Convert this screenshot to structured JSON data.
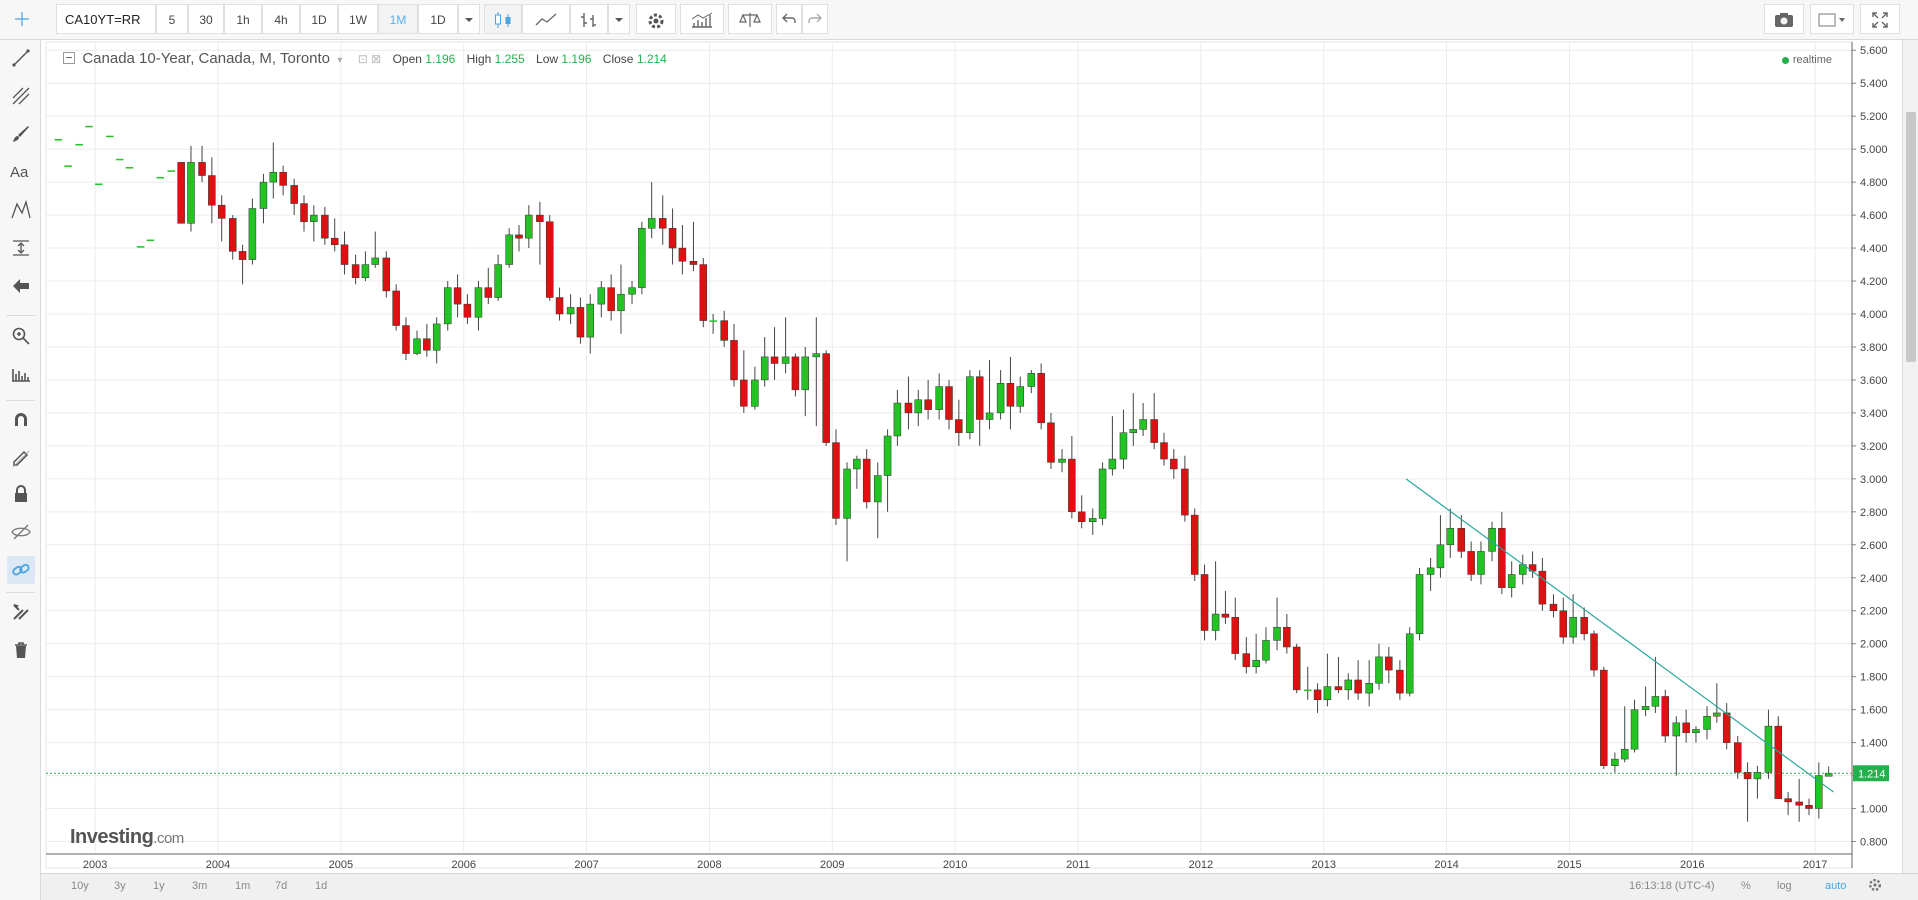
{
  "toolbar": {
    "symbol": "CA10YT=RR",
    "intervals": [
      "5",
      "30",
      "1h",
      "4h",
      "1D",
      "1W",
      "1M",
      "1D"
    ],
    "active_interval": "1M"
  },
  "legend": {
    "title": "Canada 10-Year, Canada, M, Toronto",
    "open_label": "Open",
    "open": "1.196",
    "high_label": "High",
    "high": "1.255",
    "low_label": "Low",
    "low": "1.196",
    "close_label": "Close",
    "close": "1.214"
  },
  "realtime": "realtime",
  "watermark": {
    "main": "Investing",
    "suffix": ".com"
  },
  "bottom": {
    "ranges": [
      "10y",
      "3y",
      "1y",
      "3m",
      "1m",
      "7d",
      "1d"
    ],
    "time": "16:13:18 (UTC-4)",
    "percent": "%",
    "log": "log",
    "auto": "auto"
  },
  "colors": {
    "up": "#22c322",
    "down": "#dd1111",
    "trendline": "#26a69a",
    "price_line": "#22b14c",
    "accent": "#4aa3df"
  },
  "icons": [
    "crosshair-icon",
    "trend-line-icon",
    "pitchfork-icon",
    "brush-icon",
    "text-icon",
    "pattern-icon",
    "measure-icon",
    "arrow-left-icon",
    "zoom-icon",
    "ruler-icon",
    "magnet-icon",
    "pencil-lock-icon",
    "lock-icon",
    "eye-icon",
    "link-icon",
    "wrench-icon",
    "trash-icon",
    "camera-icon",
    "fullscreen-icon",
    "gear-icon"
  ],
  "chart_data": {
    "type": "candlestick",
    "title": "Canada 10-Year, Canada, M, Toronto",
    "xlabel": "",
    "ylabel": "",
    "x_ticks": [
      "2003",
      "2004",
      "2005",
      "2006",
      "2007",
      "2008",
      "2009",
      "2010",
      "2011",
      "2012",
      "2013",
      "2014",
      "2015",
      "2016",
      "2017"
    ],
    "y_ticks": [
      "0.800",
      "1.000",
      "1.200",
      "1.400",
      "1.600",
      "1.800",
      "2.000",
      "2.200",
      "2.400",
      "2.600",
      "2.800",
      "3.000",
      "3.200",
      "3.400",
      "3.600",
      "3.800",
      "4.000",
      "4.200",
      "4.400",
      "4.600",
      "4.800",
      "5.000",
      "5.200",
      "5.400",
      "5.600"
    ],
    "ylim": [
      0.7,
      5.65
    ],
    "xlim": [
      2002.6,
      2017.3
    ],
    "last_price": "1.214",
    "trendline": {
      "from": [
        2013.67,
        3.0
      ],
      "to": [
        2017.15,
        1.1
      ]
    },
    "candles": [
      [
        2002.7,
        5.06,
        5.06,
        5.06,
        5.06
      ],
      [
        2002.78,
        4.9,
        4.9,
        4.9,
        4.9
      ],
      [
        2002.87,
        5.03,
        5.03,
        5.03,
        5.03
      ],
      [
        2002.95,
        5.14,
        5.14,
        5.14,
        5.14
      ],
      [
        2003.03,
        4.79,
        4.79,
        4.79,
        4.79
      ],
      [
        2003.12,
        5.08,
        5.08,
        5.08,
        5.08
      ],
      [
        2003.2,
        4.94,
        4.94,
        4.94,
        4.94
      ],
      [
        2003.28,
        4.89,
        4.89,
        4.89,
        4.89
      ],
      [
        2003.37,
        4.41,
        4.41,
        4.41,
        4.41
      ],
      [
        2003.45,
        4.45,
        4.45,
        4.45,
        4.45
      ],
      [
        2003.53,
        4.83,
        4.83,
        4.83,
        4.83
      ],
      [
        2003.62,
        4.87,
        4.87,
        4.87,
        4.87
      ],
      [
        2003.7,
        4.92,
        4.92,
        4.55,
        4.55
      ],
      [
        2003.78,
        4.55,
        5.02,
        4.5,
        4.92
      ],
      [
        2003.87,
        4.92,
        5.02,
        4.8,
        4.84
      ],
      [
        2003.95,
        4.84,
        4.95,
        4.55,
        4.66
      ],
      [
        2004.03,
        4.66,
        4.72,
        4.44,
        4.58
      ],
      [
        2004.12,
        4.58,
        4.6,
        4.33,
        4.38
      ],
      [
        2004.2,
        4.38,
        4.42,
        4.18,
        4.33
      ],
      [
        2004.28,
        4.33,
        4.7,
        4.3,
        4.64
      ],
      [
        2004.37,
        4.64,
        4.85,
        4.55,
        4.8
      ],
      [
        2004.45,
        4.8,
        5.04,
        4.7,
        4.86
      ],
      [
        2004.53,
        4.86,
        4.9,
        4.72,
        4.78
      ],
      [
        2004.62,
        4.78,
        4.82,
        4.6,
        4.67
      ],
      [
        2004.7,
        4.67,
        4.72,
        4.5,
        4.56
      ],
      [
        2004.78,
        4.56,
        4.66,
        4.44,
        4.6
      ],
      [
        2004.87,
        4.6,
        4.65,
        4.42,
        4.46
      ],
      [
        2004.95,
        4.46,
        4.58,
        4.38,
        4.42
      ],
      [
        2005.03,
        4.42,
        4.5,
        4.24,
        4.3
      ],
      [
        2005.12,
        4.3,
        4.36,
        4.18,
        4.22
      ],
      [
        2005.2,
        4.22,
        4.38,
        4.2,
        4.3
      ],
      [
        2005.28,
        4.3,
        4.5,
        4.28,
        4.34
      ],
      [
        2005.37,
        4.34,
        4.38,
        4.1,
        4.14
      ],
      [
        2005.45,
        4.14,
        4.18,
        3.9,
        3.93
      ],
      [
        2005.53,
        3.93,
        3.98,
        3.72,
        3.76
      ],
      [
        2005.62,
        3.76,
        3.9,
        3.75,
        3.85
      ],
      [
        2005.7,
        3.85,
        3.94,
        3.74,
        3.78
      ],
      [
        2005.78,
        3.78,
        3.98,
        3.7,
        3.94
      ],
      [
        2005.87,
        3.94,
        4.2,
        3.9,
        4.16
      ],
      [
        2005.95,
        4.16,
        4.24,
        3.98,
        4.06
      ],
      [
        2006.03,
        4.06,
        4.12,
        3.94,
        3.98
      ],
      [
        2006.12,
        3.98,
        4.2,
        3.9,
        4.16
      ],
      [
        2006.2,
        4.16,
        4.28,
        4.06,
        4.1
      ],
      [
        2006.28,
        4.1,
        4.36,
        4.08,
        4.3
      ],
      [
        2006.37,
        4.3,
        4.52,
        4.28,
        4.48
      ],
      [
        2006.45,
        4.48,
        4.54,
        4.38,
        4.46
      ],
      [
        2006.53,
        4.46,
        4.66,
        4.4,
        4.6
      ],
      [
        2006.62,
        4.6,
        4.68,
        4.3,
        4.56
      ],
      [
        2006.7,
        4.56,
        4.6,
        4.08,
        4.1
      ],
      [
        2006.78,
        4.1,
        4.16,
        3.96,
        4.0
      ],
      [
        2006.87,
        4.0,
        4.12,
        3.94,
        4.04
      ],
      [
        2006.95,
        4.04,
        4.1,
        3.82,
        3.86
      ],
      [
        2007.03,
        3.86,
        4.12,
        3.76,
        4.06
      ],
      [
        2007.12,
        4.06,
        4.2,
        3.98,
        4.16
      ],
      [
        2007.2,
        4.16,
        4.24,
        3.96,
        4.02
      ],
      [
        2007.28,
        4.02,
        4.3,
        3.88,
        4.12
      ],
      [
        2007.37,
        4.12,
        4.2,
        4.06,
        4.16
      ],
      [
        2007.45,
        4.16,
        4.56,
        4.12,
        4.52
      ],
      [
        2007.53,
        4.52,
        4.8,
        4.46,
        4.58
      ],
      [
        2007.62,
        4.58,
        4.72,
        4.42,
        4.52
      ],
      [
        2007.7,
        4.52,
        4.64,
        4.3,
        4.4
      ],
      [
        2007.78,
        4.4,
        4.54,
        4.24,
        4.32
      ],
      [
        2007.87,
        4.32,
        4.56,
        4.26,
        4.3
      ],
      [
        2007.95,
        4.3,
        4.34,
        3.92,
        3.96
      ],
      [
        2008.03,
        3.96,
        4.0,
        3.88,
        3.96
      ],
      [
        2008.12,
        3.96,
        4.02,
        3.8,
        3.84
      ],
      [
        2008.2,
        3.84,
        3.94,
        3.56,
        3.6
      ],
      [
        2008.28,
        3.6,
        3.78,
        3.4,
        3.44
      ],
      [
        2008.37,
        3.44,
        3.68,
        3.42,
        3.6
      ],
      [
        2008.45,
        3.6,
        3.86,
        3.56,
        3.74
      ],
      [
        2008.53,
        3.74,
        3.92,
        3.6,
        3.7
      ],
      [
        2008.62,
        3.7,
        3.98,
        3.64,
        3.74
      ],
      [
        2008.7,
        3.74,
        3.76,
        3.5,
        3.54
      ],
      [
        2008.78,
        3.54,
        3.8,
        3.38,
        3.74
      ],
      [
        2008.87,
        3.74,
        3.98,
        3.32,
        3.76
      ],
      [
        2008.95,
        3.76,
        3.78,
        3.2,
        3.22
      ],
      [
        2009.03,
        3.22,
        3.3,
        2.72,
        2.76
      ],
      [
        2009.12,
        2.76,
        3.1,
        2.5,
        3.06
      ],
      [
        2009.2,
        3.06,
        3.14,
        2.94,
        3.12
      ],
      [
        2009.28,
        3.12,
        3.18,
        2.82,
        2.86
      ],
      [
        2009.37,
        2.86,
        3.1,
        2.64,
        3.02
      ],
      [
        2009.45,
        3.02,
        3.3,
        2.8,
        3.26
      ],
      [
        2009.53,
        3.26,
        3.54,
        3.2,
        3.46
      ],
      [
        2009.62,
        3.46,
        3.62,
        3.3,
        3.4
      ],
      [
        2009.7,
        3.4,
        3.54,
        3.32,
        3.48
      ],
      [
        2009.78,
        3.48,
        3.6,
        3.36,
        3.42
      ],
      [
        2009.87,
        3.42,
        3.64,
        3.36,
        3.56
      ],
      [
        2009.95,
        3.56,
        3.6,
        3.3,
        3.36
      ],
      [
        2010.03,
        3.36,
        3.48,
        3.2,
        3.28
      ],
      [
        2010.12,
        3.28,
        3.66,
        3.24,
        3.62
      ],
      [
        2010.2,
        3.62,
        3.66,
        3.2,
        3.36
      ],
      [
        2010.28,
        3.36,
        3.72,
        3.3,
        3.4
      ],
      [
        2010.37,
        3.4,
        3.66,
        3.36,
        3.58
      ],
      [
        2010.45,
        3.58,
        3.74,
        3.3,
        3.44
      ],
      [
        2010.53,
        3.44,
        3.62,
        3.4,
        3.56
      ],
      [
        2010.62,
        3.56,
        3.66,
        3.52,
        3.64
      ],
      [
        2010.7,
        3.64,
        3.7,
        3.3,
        3.34
      ],
      [
        2010.78,
        3.34,
        3.4,
        3.06,
        3.1
      ],
      [
        2010.87,
        3.1,
        3.18,
        3.04,
        3.12
      ],
      [
        2010.95,
        3.12,
        3.26,
        2.76,
        2.8
      ],
      [
        2011.03,
        2.8,
        2.9,
        2.7,
        2.74
      ],
      [
        2011.12,
        2.74,
        2.82,
        2.66,
        2.76
      ],
      [
        2011.2,
        2.76,
        3.1,
        2.72,
        3.06
      ],
      [
        2011.28,
        3.06,
        3.38,
        3.02,
        3.12
      ],
      [
        2011.37,
        3.12,
        3.42,
        3.06,
        3.28
      ],
      [
        2011.45,
        3.28,
        3.52,
        3.2,
        3.3
      ],
      [
        2011.53,
        3.3,
        3.46,
        3.26,
        3.36
      ],
      [
        2011.62,
        3.36,
        3.52,
        3.18,
        3.22
      ],
      [
        2011.7,
        3.22,
        3.28,
        3.08,
        3.12
      ],
      [
        2011.78,
        3.12,
        3.18,
        3.0,
        3.06
      ],
      [
        2011.87,
        3.06,
        3.14,
        2.74,
        2.78
      ],
      [
        2011.95,
        2.78,
        2.82,
        2.38,
        2.42
      ],
      [
        2012.03,
        2.42,
        2.48,
        2.02,
        2.08
      ],
      [
        2012.12,
        2.08,
        2.5,
        2.02,
        2.18
      ],
      [
        2012.2,
        2.18,
        2.32,
        2.12,
        2.16
      ],
      [
        2012.28,
        2.16,
        2.28,
        1.9,
        1.94
      ],
      [
        2012.37,
        1.94,
        2.04,
        1.82,
        1.86
      ],
      [
        2012.45,
        1.86,
        2.06,
        1.82,
        1.9
      ],
      [
        2012.53,
        1.9,
        2.1,
        1.88,
        2.02
      ],
      [
        2012.62,
        2.02,
        2.28,
        1.96,
        2.1
      ],
      [
        2012.7,
        2.1,
        2.18,
        1.94,
        1.98
      ],
      [
        2012.78,
        1.98,
        2.0,
        1.7,
        1.72
      ],
      [
        2012.87,
        1.72,
        1.86,
        1.66,
        1.72
      ],
      [
        2012.95,
        1.72,
        1.76,
        1.58,
        1.66
      ],
      [
        2013.03,
        1.66,
        1.94,
        1.62,
        1.74
      ],
      [
        2013.12,
        1.74,
        1.92,
        1.7,
        1.72
      ],
      [
        2013.2,
        1.72,
        1.82,
        1.66,
        1.78
      ],
      [
        2013.28,
        1.78,
        1.9,
        1.66,
        1.7
      ],
      [
        2013.37,
        1.7,
        1.9,
        1.62,
        1.76
      ],
      [
        2013.45,
        1.76,
        2.0,
        1.72,
        1.92
      ],
      [
        2013.53,
        1.92,
        1.98,
        1.76,
        1.84
      ],
      [
        2013.62,
        1.84,
        1.9,
        1.66,
        1.7
      ],
      [
        2013.7,
        1.7,
        2.1,
        1.68,
        2.06
      ],
      [
        2013.78,
        2.06,
        2.46,
        2.02,
        2.42
      ],
      [
        2013.87,
        2.42,
        2.52,
        2.32,
        2.46
      ],
      [
        2013.95,
        2.46,
        2.78,
        2.4,
        2.6
      ],
      [
        2014.03,
        2.6,
        2.82,
        2.52,
        2.7
      ],
      [
        2014.12,
        2.7,
        2.78,
        2.52,
        2.56
      ],
      [
        2014.2,
        2.56,
        2.62,
        2.38,
        2.42
      ],
      [
        2014.28,
        2.42,
        2.62,
        2.36,
        2.56
      ],
      [
        2014.37,
        2.56,
        2.74,
        2.5,
        2.7
      ],
      [
        2014.45,
        2.7,
        2.8,
        2.3,
        2.34
      ],
      [
        2014.53,
        2.34,
        2.5,
        2.28,
        2.42
      ],
      [
        2014.62,
        2.42,
        2.54,
        2.36,
        2.48
      ],
      [
        2014.7,
        2.48,
        2.56,
        2.4,
        2.44
      ],
      [
        2014.78,
        2.44,
        2.52,
        2.2,
        2.24
      ],
      [
        2014.87,
        2.24,
        2.3,
        2.16,
        2.2
      ],
      [
        2014.95,
        2.2,
        2.28,
        2.0,
        2.04
      ],
      [
        2015.03,
        2.04,
        2.3,
        2.0,
        2.16
      ],
      [
        2015.12,
        2.16,
        2.22,
        2.02,
        2.06
      ],
      [
        2015.2,
        2.06,
        2.08,
        1.8,
        1.84
      ],
      [
        2015.28,
        1.84,
        1.86,
        1.24,
        1.26
      ],
      [
        2015.37,
        1.26,
        1.34,
        1.22,
        1.3
      ],
      [
        2015.45,
        1.3,
        1.62,
        1.28,
        1.36
      ],
      [
        2015.53,
        1.36,
        1.66,
        1.34,
        1.6
      ],
      [
        2015.62,
        1.6,
        1.74,
        1.56,
        1.62
      ],
      [
        2015.7,
        1.62,
        1.92,
        1.58,
        1.68
      ],
      [
        2015.78,
        1.68,
        1.72,
        1.4,
        1.44
      ],
      [
        2015.87,
        1.44,
        1.56,
        1.2,
        1.52
      ],
      [
        2015.95,
        1.52,
        1.6,
        1.4,
        1.46
      ],
      [
        2016.03,
        1.46,
        1.5,
        1.4,
        1.48
      ],
      [
        2016.12,
        1.48,
        1.62,
        1.42,
        1.56
      ],
      [
        2016.2,
        1.56,
        1.76,
        1.52,
        1.58
      ],
      [
        2016.28,
        1.58,
        1.64,
        1.36,
        1.4
      ],
      [
        2016.37,
        1.4,
        1.44,
        1.18,
        1.22
      ],
      [
        2016.45,
        1.22,
        1.28,
        0.92,
        1.18
      ],
      [
        2016.53,
        1.18,
        1.26,
        1.06,
        1.22
      ],
      [
        2016.62,
        1.22,
        1.6,
        1.18,
        1.5
      ],
      [
        2016.7,
        1.5,
        1.56,
        1.06,
        1.06
      ],
      [
        2016.78,
        1.06,
        1.1,
        0.96,
        1.04
      ],
      [
        2016.87,
        1.04,
        1.18,
        0.92,
        1.02
      ],
      [
        2016.95,
        1.02,
        1.06,
        0.96,
        1.0
      ],
      [
        2017.03,
        1.0,
        1.28,
        0.94,
        1.2
      ],
      [
        2017.11,
        1.196,
        1.255,
        1.196,
        1.214
      ]
    ]
  }
}
